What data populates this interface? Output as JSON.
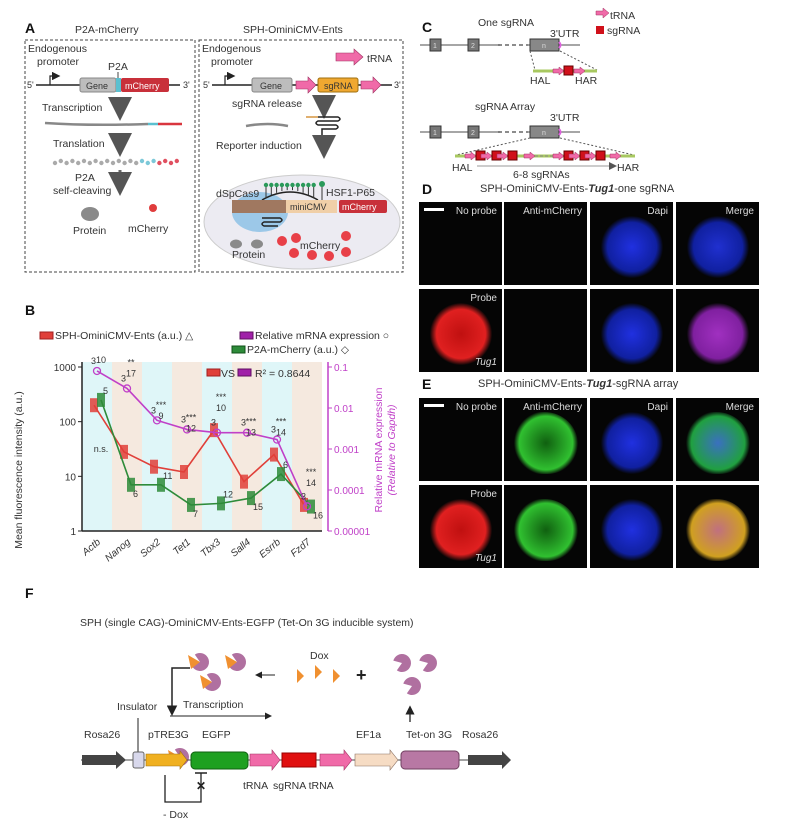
{
  "panel_labels": {
    "a": "A",
    "b": "B",
    "c": "C",
    "d": "D",
    "e": "E",
    "f": "F"
  },
  "panel_a": {
    "left_title": "P2A-mCherry",
    "right_title": "SPH-OminiCMV-Ents",
    "endogenous": "Endogenous",
    "promoter": "promoter",
    "five_prime": "5'",
    "three_prime": "3'",
    "gene": "Gene",
    "p2a": "P2A",
    "mcherry": "mCherry",
    "transcription": "Transcription",
    "translation": "Translation",
    "p2a_cleave_1": "P2A",
    "p2a_cleave_2": "self-cleaving",
    "protein": "Protein",
    "trna": "tRNA",
    "sgrna": "sgRNA",
    "sgrna_release": "sgRNA release",
    "reporter_induction": "Reporter induction",
    "dspcas9": "dSpCas9",
    "hsf1": "HSF1-P65",
    "minicmv": "miniCMV",
    "colors": {
      "mcherry": "#d9363e",
      "p2a": "#5bc0d0",
      "trna": "#f06aa8",
      "sgrna": "#f0a830",
      "gene": "#bdbdbd",
      "cas9": "#9cc8e8"
    }
  },
  "chart_data": {
    "type": "line",
    "categories": [
      "Actb",
      "Nanog",
      "Sox2",
      "Tet1",
      "Tbx3",
      "Sall4",
      "Esrrb",
      "Fzd7"
    ],
    "ylabel": "Mean fluorescence intensity (a.u.)",
    "ylabel_right": "Relative mRNA expression",
    "ylabel_right_2": "(Relative to Gapdh)",
    "yscale": "log",
    "ylim": [
      1,
      1000
    ],
    "ylim_right": [
      1e-05,
      0.1
    ],
    "yticks": [
      "1",
      "10",
      "100",
      "1000"
    ],
    "yticks_right": [
      "0.00001",
      "0.0001",
      "0.001",
      "0.01",
      "0.1"
    ],
    "legend": [
      "SPH-OminiCMV-Ents (a.u.) △",
      "Relative mRNA expression ○",
      "P2A-mCherry (a.u.) ◇"
    ],
    "correlation_label": "VS",
    "r2": "R² = 0.8644",
    "series": [
      {
        "name": "SPH-OminiCMV-Ents (a.u.)",
        "color": "#e0403a",
        "axis": "left",
        "values": [
          200,
          28,
          15,
          12,
          70,
          8,
          25,
          3
        ]
      },
      {
        "name": "P2A-mCherry (a.u.)",
        "color": "#2e8b3a",
        "axis": "left",
        "values": [
          250,
          7,
          7,
          3,
          3.2,
          4,
          11,
          2.8
        ]
      },
      {
        "name": "Relative mRNA expression",
        "color": "#c040c8",
        "axis": "right",
        "values": [
          0.08,
          0.03,
          0.005,
          0.003,
          0.0025,
          0.0025,
          0.0017,
          4e-05
        ]
      }
    ],
    "significance": [
      "n.s.",
      "**",
      "***",
      "***",
      "***",
      "***",
      "***",
      "***"
    ],
    "n_sph": [
      "10",
      "17",
      "9",
      "12",
      "10",
      "13",
      "14",
      "14"
    ],
    "n_p2a": [
      "5",
      "6",
      "11",
      "7",
      "12",
      "15",
      "6",
      "16"
    ],
    "n_mrna": [
      "3",
      "3",
      "3",
      "3",
      "3",
      "3",
      "3",
      "3"
    ],
    "band_colors": [
      "#dff6f8",
      "#f5e9df"
    ]
  },
  "panel_c": {
    "one_sgrna": "One sgRNA",
    "array": "sgRNA Array",
    "utr": "3'UTR",
    "exon1": "1",
    "exon2": "2",
    "exonn": "n",
    "legend_trna": "tRNA",
    "legend_sgrna": "sgRNA",
    "hal": "HAL",
    "har": "HAR",
    "count": "6-8 sgRNAs"
  },
  "panel_d": {
    "title_pre": "SPH-OminiCMV-Ents-",
    "title_gene": "Tug1",
    "title_post": "-one sgRNA",
    "cols": [
      "No probe",
      "Anti-mCherry",
      "Dapi",
      "Merge"
    ],
    "probe": "Probe",
    "gene": "Tug1"
  },
  "panel_e": {
    "title_pre": "SPH-OminiCMV-Ents-",
    "title_gene": "Tug1",
    "title_post": "-sgRNA array",
    "cols": [
      "No probe",
      "Anti-mCherry",
      "Dapi",
      "Merge"
    ],
    "probe": "Probe",
    "gene": "Tug1"
  },
  "panel_f": {
    "title": "SPH (single CAG)-OminiCMV-Ents-EGFP (Tet-On 3G inducible system)",
    "dox": "Dox",
    "plus": "+",
    "insulator": "Insulator",
    "transcription": "Transcription",
    "rosa26": "Rosa26",
    "ptre3g": "pTRE3G",
    "egfp": "EGFP",
    "ef1a": "EF1a",
    "teton": "Tet-on 3G",
    "trna": "tRNA",
    "sgrna_trna": "sgRNA tRNA",
    "minus_dox": "- Dox"
  }
}
